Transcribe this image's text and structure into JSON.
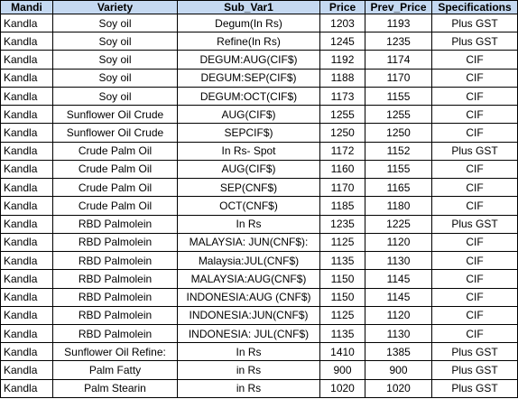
{
  "table": {
    "header": [
      "Mandi",
      "Variety",
      "Sub_Var1",
      "Price",
      "Prev_Price",
      "Specifications"
    ],
    "rows": [
      [
        "Kandla",
        "Soy oil",
        "Degum(In Rs)",
        1203,
        1193,
        "Plus GST"
      ],
      [
        "Kandla",
        "Soy oil",
        "Refine(In Rs)",
        1245,
        1235,
        "Plus GST"
      ],
      [
        "Kandla",
        "Soy oil",
        "DEGUM:AUG(CIF$)",
        1192,
        1174,
        "CIF"
      ],
      [
        "Kandla",
        "Soy oil",
        "DEGUM:SEP(CIF$)",
        1188,
        1170,
        "CIF"
      ],
      [
        "Kandla",
        "Soy oil",
        "DEGUM:OCT(CIF$)",
        1173,
        1155,
        "CIF"
      ],
      [
        "Kandla",
        "Sunflower Oil Crude",
        "AUG(CIF$)",
        1255,
        1255,
        "CIF"
      ],
      [
        "Kandla",
        "Sunflower Oil Crude",
        "SEPCIF$)",
        1250,
        1250,
        "CIF"
      ],
      [
        "Kandla",
        "Crude Palm Oil",
        "In Rs- Spot",
        1172,
        1152,
        "Plus GST"
      ],
      [
        "Kandla",
        "Crude Palm Oil",
        "AUG(CIF$)",
        1160,
        1155,
        "CIF"
      ],
      [
        "Kandla",
        "Crude Palm Oil",
        "SEP(CNF$)",
        1170,
        1165,
        "CIF"
      ],
      [
        "Kandla",
        "Crude Palm Oil",
        "OCT(CNF$)",
        1185,
        1180,
        "CIF"
      ],
      [
        "Kandla",
        "RBD Palmolein",
        "In Rs",
        1235,
        1225,
        "Plus GST"
      ],
      [
        "Kandla",
        "RBD Palmolein",
        "MALAYSIA: JUN(CNF$):",
        1125,
        1120,
        "CIF"
      ],
      [
        "Kandla",
        "RBD Palmolein",
        "Malaysia:JUL(CNF$)",
        1135,
        1130,
        "CIF"
      ],
      [
        "Kandla",
        "RBD Palmolein",
        "MALAYSIA:AUG(CNF$)",
        1150,
        1145,
        "CIF"
      ],
      [
        "Kandla",
        "RBD Palmolein",
        "INDONESIA:AUG (CNF$)",
        1150,
        1145,
        "CIF"
      ],
      [
        "Kandla",
        "RBD Palmolein",
        "INDONESIA:JUN(CNF$)",
        1125,
        1120,
        "CIF"
      ],
      [
        "Kandla",
        "RBD Palmolein",
        "INDONESIA: JUL(CNF$)",
        1135,
        1130,
        "CIF"
      ],
      [
        "Kandla",
        "Sunflower Oil Refine:",
        "In Rs",
        1410,
        1385,
        "Plus GST"
      ],
      [
        "Kandla",
        "Palm Fatty",
        "in Rs",
        900,
        900,
        "Plus GST"
      ],
      [
        "Kandla",
        "Palm Stearin",
        "in Rs",
        1020,
        1020,
        "Plus GST"
      ]
    ]
  }
}
